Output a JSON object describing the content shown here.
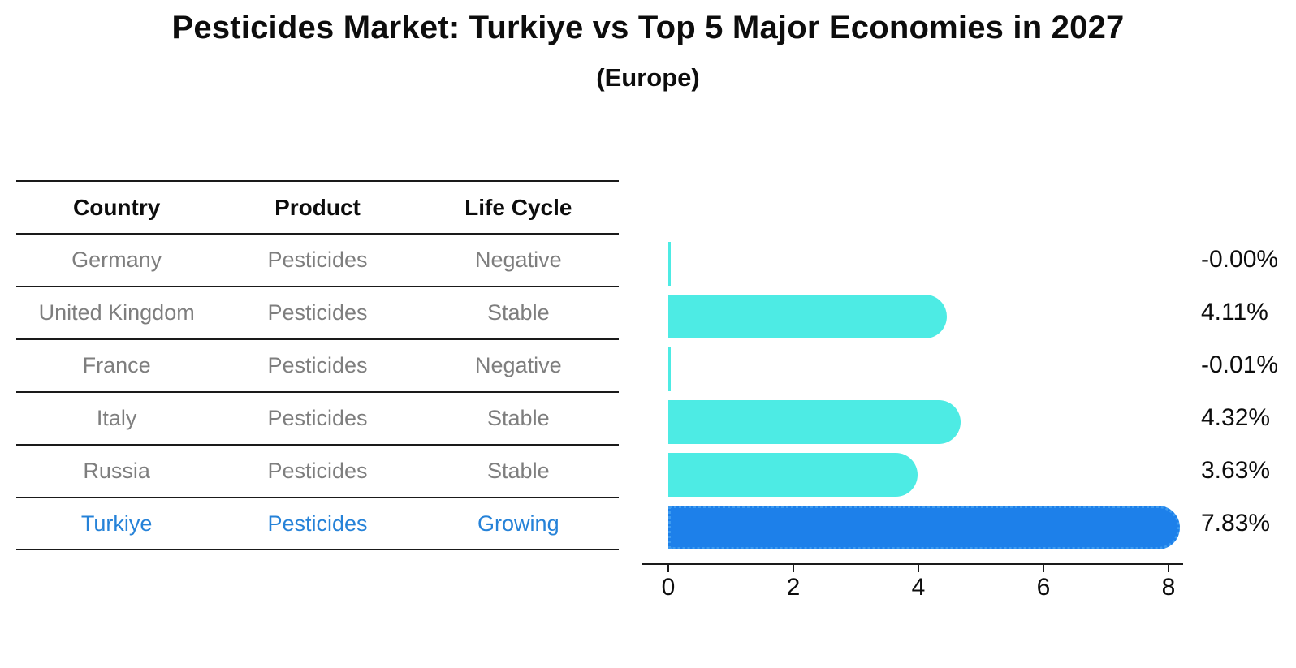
{
  "header": {
    "title": "Pesticides Market: Turkiye vs Top 5 Major Economies in 2027",
    "subtitle": "(Europe)"
  },
  "table": {
    "columns": [
      "Country",
      "Product",
      "Life Cycle"
    ],
    "rows": [
      {
        "country": "Germany",
        "product": "Pesticides",
        "life_cycle": "Negative",
        "highlight": false
      },
      {
        "country": "United Kingdom",
        "product": "Pesticides",
        "life_cycle": "Stable",
        "highlight": false
      },
      {
        "country": "France",
        "product": "Pesticides",
        "life_cycle": "Negative",
        "highlight": false
      },
      {
        "country": "Italy",
        "product": "Pesticides",
        "life_cycle": "Stable",
        "highlight": false
      },
      {
        "country": "Russia",
        "product": "Pesticides",
        "life_cycle": "Stable",
        "highlight": false
      },
      {
        "country": "Turkiye",
        "product": "Pesticides",
        "life_cycle": "Growing",
        "highlight": true
      }
    ]
  },
  "chart_data": {
    "type": "bar",
    "orientation": "horizontal",
    "title": "Pesticides Market: Turkiye vs Top 5 Major Economies in 2027 (Europe)",
    "categories": [
      "Germany",
      "United Kingdom",
      "France",
      "Italy",
      "Russia",
      "Turkiye"
    ],
    "values": [
      -0.0,
      4.11,
      -0.01,
      4.32,
      3.63,
      7.83
    ],
    "value_labels": [
      "-0.00%",
      "4.11%",
      "-0.01%",
      "4.32%",
      "3.63%",
      "7.83%"
    ],
    "xlim": [
      0,
      8
    ],
    "xticks": [
      0,
      2,
      4,
      6,
      8
    ],
    "xlabel": "",
    "ylabel": "",
    "grid": false,
    "legend": null,
    "highlight_index": 5,
    "bar_color": "#4debe4",
    "highlight_bar_color": "#1d80ea",
    "highlight_text_color": "#2582d8",
    "row_text_color": "#7e7e7e"
  }
}
